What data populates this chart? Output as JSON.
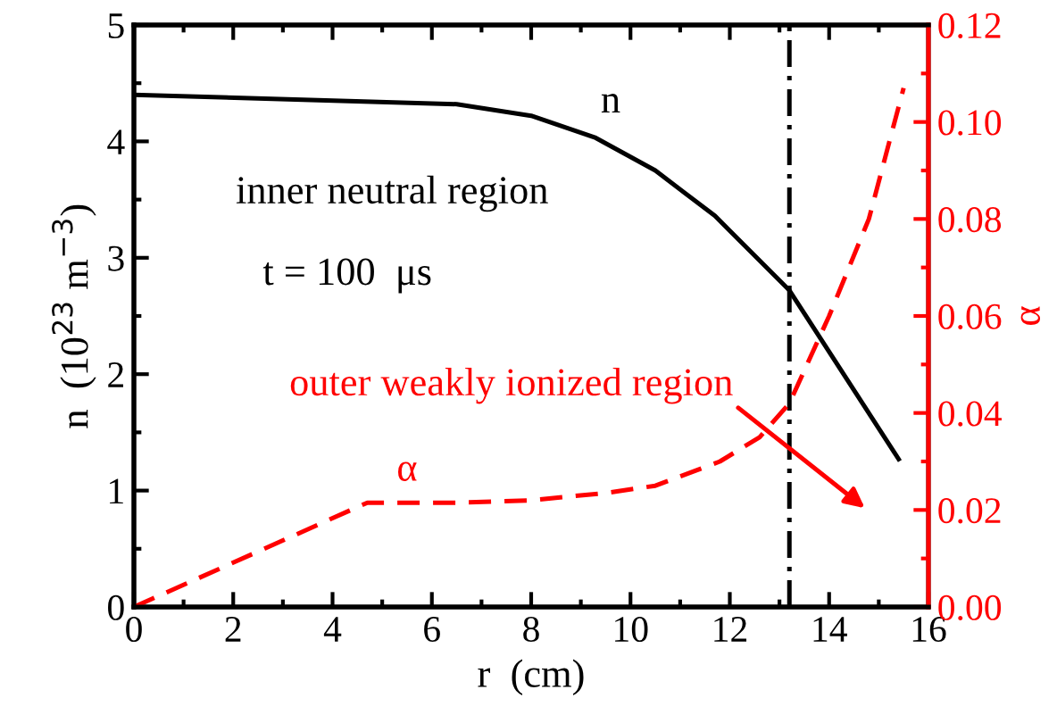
{
  "chart_data": {
    "type": "line",
    "xlabel": "r  (cm)",
    "ylabel": "n  (10$^{23}$ m$^{−3}$)",
    "y2label": "α",
    "xlim": [
      0,
      16
    ],
    "xticks": [
      0,
      2,
      4,
      6,
      8,
      10,
      12,
      14,
      16
    ],
    "ylim": [
      0,
      5
    ],
    "yticks": [
      0,
      1,
      2,
      3,
      4,
      5
    ],
    "y2lim": [
      0,
      0.12
    ],
    "y2ticks": [
      {
        "value": 0,
        "label": "0.00"
      },
      {
        "value": 0.02,
        "label": "0.02"
      },
      {
        "value": 0.04,
        "label": "0.04"
      },
      {
        "value": 0.06,
        "label": "0.06"
      },
      {
        "value": 0.08,
        "label": "0.08"
      },
      {
        "value": 0.1,
        "label": "0.10"
      },
      {
        "value": 0.12,
        "label": "0.12"
      }
    ],
    "series": [
      {
        "name": "n",
        "color": "#000000",
        "line_style": "solid",
        "x": [
          0,
          6.5,
          8,
          9.3,
          10.5,
          11.7,
          13.2,
          15.4
        ],
        "values": [
          4.4,
          4.32,
          4.22,
          4.03,
          3.75,
          3.36,
          2.72,
          1.27
        ]
      },
      {
        "name": "α",
        "color": "#ff0000",
        "line_style": "dashed",
        "axis": "y2",
        "x": [
          0,
          4.7,
          6.5,
          8,
          9.5,
          10.5,
          11.8,
          12.6,
          13.2,
          14,
          14.8,
          15.5
        ],
        "values": [
          0,
          0.0215,
          0.0215,
          0.022,
          0.0235,
          0.025,
          0.03,
          0.035,
          0.042,
          0.06,
          0.08,
          0.107
        ]
      }
    ],
    "ref_lines": [
      {
        "axis": "x",
        "value": 13.2,
        "color": "#000000",
        "line_style": "dashdot"
      }
    ],
    "annotations": [
      "inner neutral region",
      "t = 100  μs",
      "outer weakly ionized region"
    ],
    "grid": false,
    "legend": false,
    "marker": "none"
  }
}
